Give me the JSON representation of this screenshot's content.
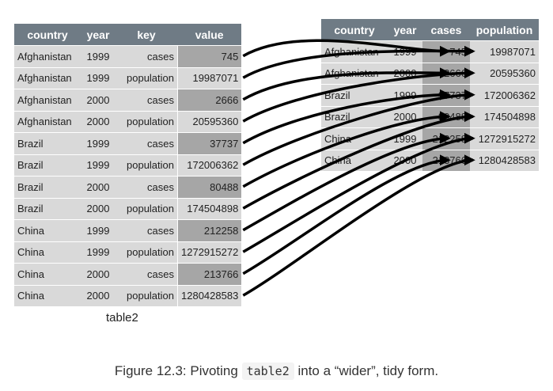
{
  "left_table": {
    "headers": [
      "country",
      "year",
      "key",
      "value"
    ],
    "rows": [
      [
        "Afghanistan",
        "1999",
        "cases",
        "745"
      ],
      [
        "Afghanistan",
        "1999",
        "population",
        "19987071"
      ],
      [
        "Afghanistan",
        "2000",
        "cases",
        "2666"
      ],
      [
        "Afghanistan",
        "2000",
        "population",
        "20595360"
      ],
      [
        "Brazil",
        "1999",
        "cases",
        "37737"
      ],
      [
        "Brazil",
        "1999",
        "population",
        "172006362"
      ],
      [
        "Brazil",
        "2000",
        "cases",
        "80488"
      ],
      [
        "Brazil",
        "2000",
        "population",
        "174504898"
      ],
      [
        "China",
        "1999",
        "cases",
        "212258"
      ],
      [
        "China",
        "1999",
        "population",
        "1272915272"
      ],
      [
        "China",
        "2000",
        "cases",
        "213766"
      ],
      [
        "China",
        "2000",
        "population",
        "1280428583"
      ]
    ],
    "caption": "table2"
  },
  "right_table": {
    "headers": [
      "country",
      "year",
      "cases",
      "population"
    ],
    "rows": [
      [
        "Afghanistan",
        "1999",
        "745",
        "19987071"
      ],
      [
        "Afghanistan",
        "2000",
        "2666",
        "20595360"
      ],
      [
        "Brazil",
        "1999",
        "37737",
        "172006362"
      ],
      [
        "Brazil",
        "2000",
        "80488",
        "174504898"
      ],
      [
        "China",
        "1999",
        "212258",
        "1272915272"
      ],
      [
        "China",
        "2000",
        "213766",
        "1280428583"
      ]
    ]
  },
  "figure_caption": {
    "prefix": "Figure 12.3: Pivoting ",
    "code": "table2",
    "suffix": " into a “wider”, tidy form."
  },
  "colors": {
    "header_bg": "#6f7b85",
    "cell_bg": "#d9d9d9",
    "highlight_bg": "#a6a6a6",
    "arrow": "#000000"
  }
}
